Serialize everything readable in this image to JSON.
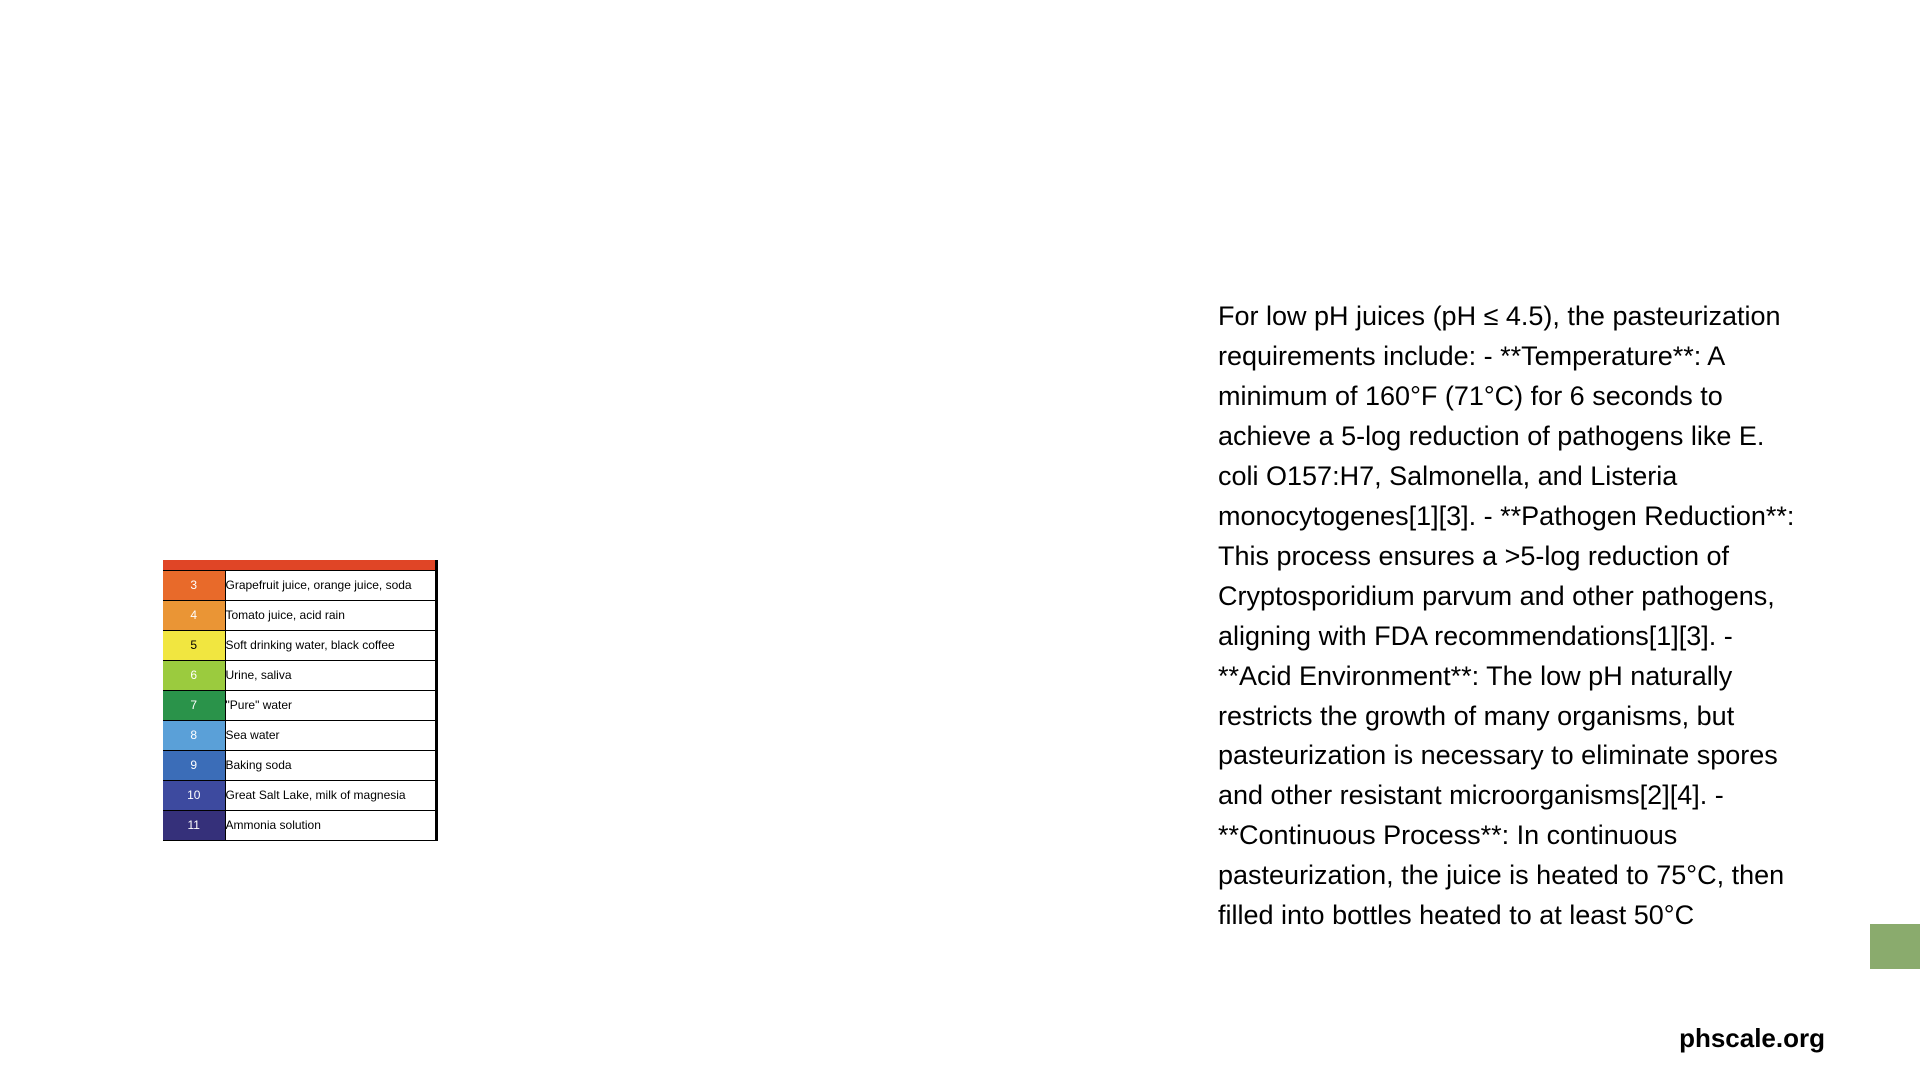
{
  "phTable": {
    "header_color": "#e04526",
    "rows": [
      {
        "num": "3",
        "color": "#e86a2a",
        "text_color": "#ffffff",
        "label": "Grapefruit juice, orange juice, soda"
      },
      {
        "num": "4",
        "color": "#ea9535",
        "text_color": "#ffffff",
        "label": "Tomato juice, acid rain"
      },
      {
        "num": "5",
        "color": "#f1e640",
        "text_color": "#000000",
        "label": "Soft drinking water, black coffee"
      },
      {
        "num": "6",
        "color": "#9bcb3e",
        "text_color": "#ffffff",
        "label": "Urine, saliva"
      },
      {
        "num": "7",
        "color": "#2a934a",
        "text_color": "#ffffff",
        "label": "\"Pure\" water"
      },
      {
        "num": "8",
        "color": "#5aa0d8",
        "text_color": "#ffffff",
        "label": "Sea water"
      },
      {
        "num": "9",
        "color": "#3b6db8",
        "text_color": "#ffffff",
        "label": "Baking soda"
      },
      {
        "num": "10",
        "color": "#3d4a9f",
        "text_color": "#ffffff",
        "label": "Great Salt Lake, milk of magnesia"
      },
      {
        "num": "11",
        "color": "#35307a",
        "text_color": "#ffffff",
        "label": "Ammonia solution"
      }
    ]
  },
  "bodyText": "For low pH juices (pH ≤ 4.5), the pasteurization requirements include: - **Temperature**: A minimum of 160°F (71°C) for 6 seconds to achieve a 5-log reduction of pathogens like E. coli O157:H7, Salmonella, and Listeria monocytogenes[1][3]. - **Pathogen Reduction**: This process ensures a >5-log reduction of Cryptosporidium parvum and other pathogens, aligning with FDA recommendations[1][3]. - **Acid Environment**: The low pH naturally restricts the growth of many organisms, but pasteurization is necessary to eliminate spores and other resistant microorganisms[2][4]. - **Continuous Process**: In continuous pasteurization, the juice is heated to 75°C, then filled into bottles heated to at least 50°C",
  "watermark": "phscale.org",
  "greenTab": {
    "color": "#8aab6d"
  }
}
